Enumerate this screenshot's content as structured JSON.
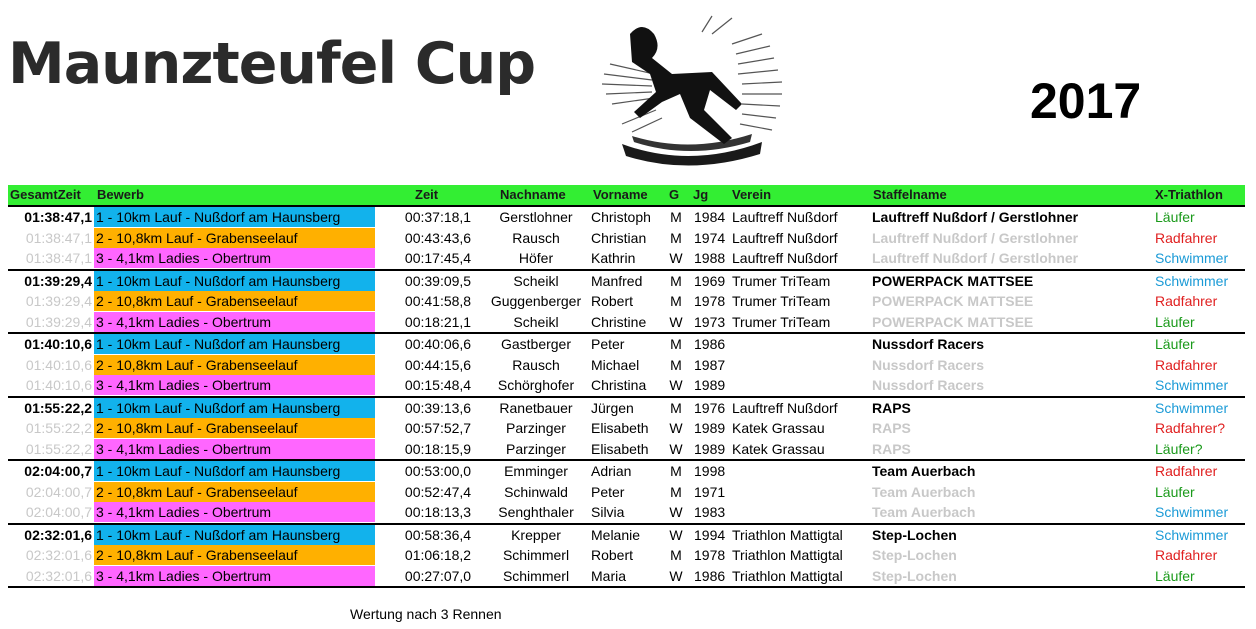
{
  "title": "Maunzteufel Cup",
  "year": "2017",
  "colors": {
    "bewerb_1": "#12b2ec",
    "bewerb_2": "#ffb000",
    "bewerb_3": "#ff66ff",
    "header": "#33ee33",
    "laeufer": "#1a9a1a",
    "radfahrer": "#e02020",
    "schwimmer": "#1a9ad6"
  },
  "logo": {
    "icon": "runner-sunburst-icon"
  },
  "headers": {
    "gesamtzeit": "GesamtZeit",
    "bewerb": "Bewerb",
    "zeit": "Zeit",
    "nachname": "Nachname",
    "vorname": "Vorname",
    "g": "G",
    "jg": "Jg",
    "verein": "Verein",
    "staffelname": "Staffelname",
    "xtriathlon": "X-Triathlon"
  },
  "groups": [
    {
      "rows": [
        {
          "gesamt": "01:38:47,1",
          "bewerb": "1 - 10km Lauf - Nußdorf am Haunsberg",
          "zeit": "00:37:18,1",
          "nachname": "Gerstlohner",
          "vorname": "Christoph",
          "g": "M",
          "jg": "1984",
          "verein": "Lauftreff Nußdorf",
          "staffel": "Lauftreff Nußdorf / Gerstlohner",
          "x": "Läufer"
        },
        {
          "gesamt": "01:38:47,1",
          "bewerb": "2 - 10,8km Lauf - Grabenseelauf",
          "zeit": "00:43:43,6",
          "nachname": "Rausch",
          "vorname": "Christian",
          "g": "M",
          "jg": "1974",
          "verein": "Lauftreff Nußdorf",
          "staffel": "Lauftreff Nußdorf / Gerstlohner",
          "x": "Radfahrer"
        },
        {
          "gesamt": "01:38:47,1",
          "bewerb": "3 - 4,1km Ladies - Obertrum",
          "zeit": "00:17:45,4",
          "nachname": "Höfer",
          "vorname": "Kathrin",
          "g": "W",
          "jg": "1988",
          "verein": "Lauftreff Nußdorf",
          "staffel": "Lauftreff Nußdorf / Gerstlohner",
          "x": "Schwimmer"
        }
      ]
    },
    {
      "rows": [
        {
          "gesamt": "01:39:29,4",
          "bewerb": "1 - 10km Lauf - Nußdorf am Haunsberg",
          "zeit": "00:39:09,5",
          "nachname": "Scheikl",
          "vorname": "Manfred",
          "g": "M",
          "jg": "1969",
          "verein": "Trumer TriTeam",
          "staffel": "POWERPACK MATTSEE",
          "x": "Schwimmer"
        },
        {
          "gesamt": "01:39:29,4",
          "bewerb": "2 - 10,8km Lauf - Grabenseelauf",
          "zeit": "00:41:58,8",
          "nachname": "Guggenberger",
          "vorname": "Robert",
          "g": "M",
          "jg": "1978",
          "verein": "Trumer TriTeam",
          "staffel": "POWERPACK MATTSEE",
          "x": "Radfahrer"
        },
        {
          "gesamt": "01:39:29,4",
          "bewerb": "3 - 4,1km Ladies - Obertrum",
          "zeit": "00:18:21,1",
          "nachname": "Scheikl",
          "vorname": "Christine",
          "g": "W",
          "jg": "1973",
          "verein": "Trumer TriTeam",
          "staffel": "POWERPACK MATTSEE",
          "x": "Läufer"
        }
      ]
    },
    {
      "rows": [
        {
          "gesamt": "01:40:10,6",
          "bewerb": "1 - 10km Lauf - Nußdorf am Haunsberg",
          "zeit": "00:40:06,6",
          "nachname": "Gastberger",
          "vorname": "Peter",
          "g": "M",
          "jg": "1986",
          "verein": "",
          "staffel": "Nussdorf Racers",
          "x": "Läufer"
        },
        {
          "gesamt": "01:40:10,6",
          "bewerb": "2 - 10,8km Lauf - Grabenseelauf",
          "zeit": "00:44:15,6",
          "nachname": "Rausch",
          "vorname": "Michael",
          "g": "M",
          "jg": "1987",
          "verein": "",
          "staffel": "Nussdorf Racers",
          "x": "Radfahrer"
        },
        {
          "gesamt": "01:40:10,6",
          "bewerb": "3 - 4,1km Ladies - Obertrum",
          "zeit": "00:15:48,4",
          "nachname": "Schörghofer",
          "vorname": "Christina",
          "g": "W",
          "jg": "1989",
          "verein": "",
          "staffel": "Nussdorf Racers",
          "x": "Schwimmer"
        }
      ]
    },
    {
      "rows": [
        {
          "gesamt": "01:55:22,2",
          "bewerb": "1 - 10km Lauf - Nußdorf am Haunsberg",
          "zeit": "00:39:13,6",
          "nachname": "Ranetbauer",
          "vorname": "Jürgen",
          "g": "M",
          "jg": "1976",
          "verein": "Lauftreff Nußdorf",
          "staffel": "RAPS",
          "x": "Schwimmer"
        },
        {
          "gesamt": "01:55:22,2",
          "bewerb": "2 - 10,8km Lauf - Grabenseelauf",
          "zeit": "00:57:52,7",
          "nachname": "Parzinger",
          "vorname": "Elisabeth",
          "g": "W",
          "jg": "1989",
          "verein": "Katek Grassau",
          "staffel": "RAPS",
          "x": "Radfahrer?"
        },
        {
          "gesamt": "01:55:22,2",
          "bewerb": "3 - 4,1km Ladies - Obertrum",
          "zeit": "00:18:15,9",
          "nachname": "Parzinger",
          "vorname": "Elisabeth",
          "g": "W",
          "jg": "1989",
          "verein": "Katek Grassau",
          "staffel": "RAPS",
          "x": "Läufer?"
        }
      ]
    },
    {
      "rows": [
        {
          "gesamt": "02:04:00,7",
          "bewerb": "1 - 10km Lauf - Nußdorf am Haunsberg",
          "zeit": "00:53:00,0",
          "nachname": "Emminger",
          "vorname": "Adrian",
          "g": "M",
          "jg": "1998",
          "verein": "",
          "staffel": "Team Auerbach",
          "x": "Radfahrer"
        },
        {
          "gesamt": "02:04:00,7",
          "bewerb": "2 - 10,8km Lauf - Grabenseelauf",
          "zeit": "00:52:47,4",
          "nachname": "Schinwald",
          "vorname": "Peter",
          "g": "M",
          "jg": "1971",
          "verein": "",
          "staffel": "Team Auerbach",
          "x": "Läufer"
        },
        {
          "gesamt": "02:04:00,7",
          "bewerb": "3 - 4,1km Ladies - Obertrum",
          "zeit": "00:18:13,3",
          "nachname": "Senghthaler",
          "vorname": "Silvia",
          "g": "W",
          "jg": "1983",
          "verein": "",
          "staffel": "Team Auerbach",
          "x": "Schwimmer"
        }
      ]
    },
    {
      "rows": [
        {
          "gesamt": "02:32:01,6",
          "bewerb": "1 - 10km Lauf - Nußdorf am Haunsberg",
          "zeit": "00:58:36,4",
          "nachname": "Krepper",
          "vorname": "Melanie",
          "g": "W",
          "jg": "1994",
          "verein": "Triathlon Mattigtal",
          "staffel": "Step-Lochen",
          "x": "Schwimmer"
        },
        {
          "gesamt": "02:32:01,6",
          "bewerb": "2 - 10,8km Lauf - Grabenseelauf",
          "zeit": "01:06:18,2",
          "nachname": "Schimmerl",
          "vorname": "Robert",
          "g": "M",
          "jg": "1978",
          "verein": "Triathlon Mattigtal",
          "staffel": "Step-Lochen",
          "x": "Radfahrer"
        },
        {
          "gesamt": "02:32:01,6",
          "bewerb": "3 - 4,1km Ladies - Obertrum",
          "zeit": "00:27:07,0",
          "nachname": "Schimmerl",
          "vorname": "Maria",
          "g": "W",
          "jg": "1986",
          "verein": "Triathlon Mattigtal",
          "staffel": "Step-Lochen",
          "x": "Läufer"
        }
      ]
    }
  ],
  "footer": "Wertung nach 3 Rennen"
}
